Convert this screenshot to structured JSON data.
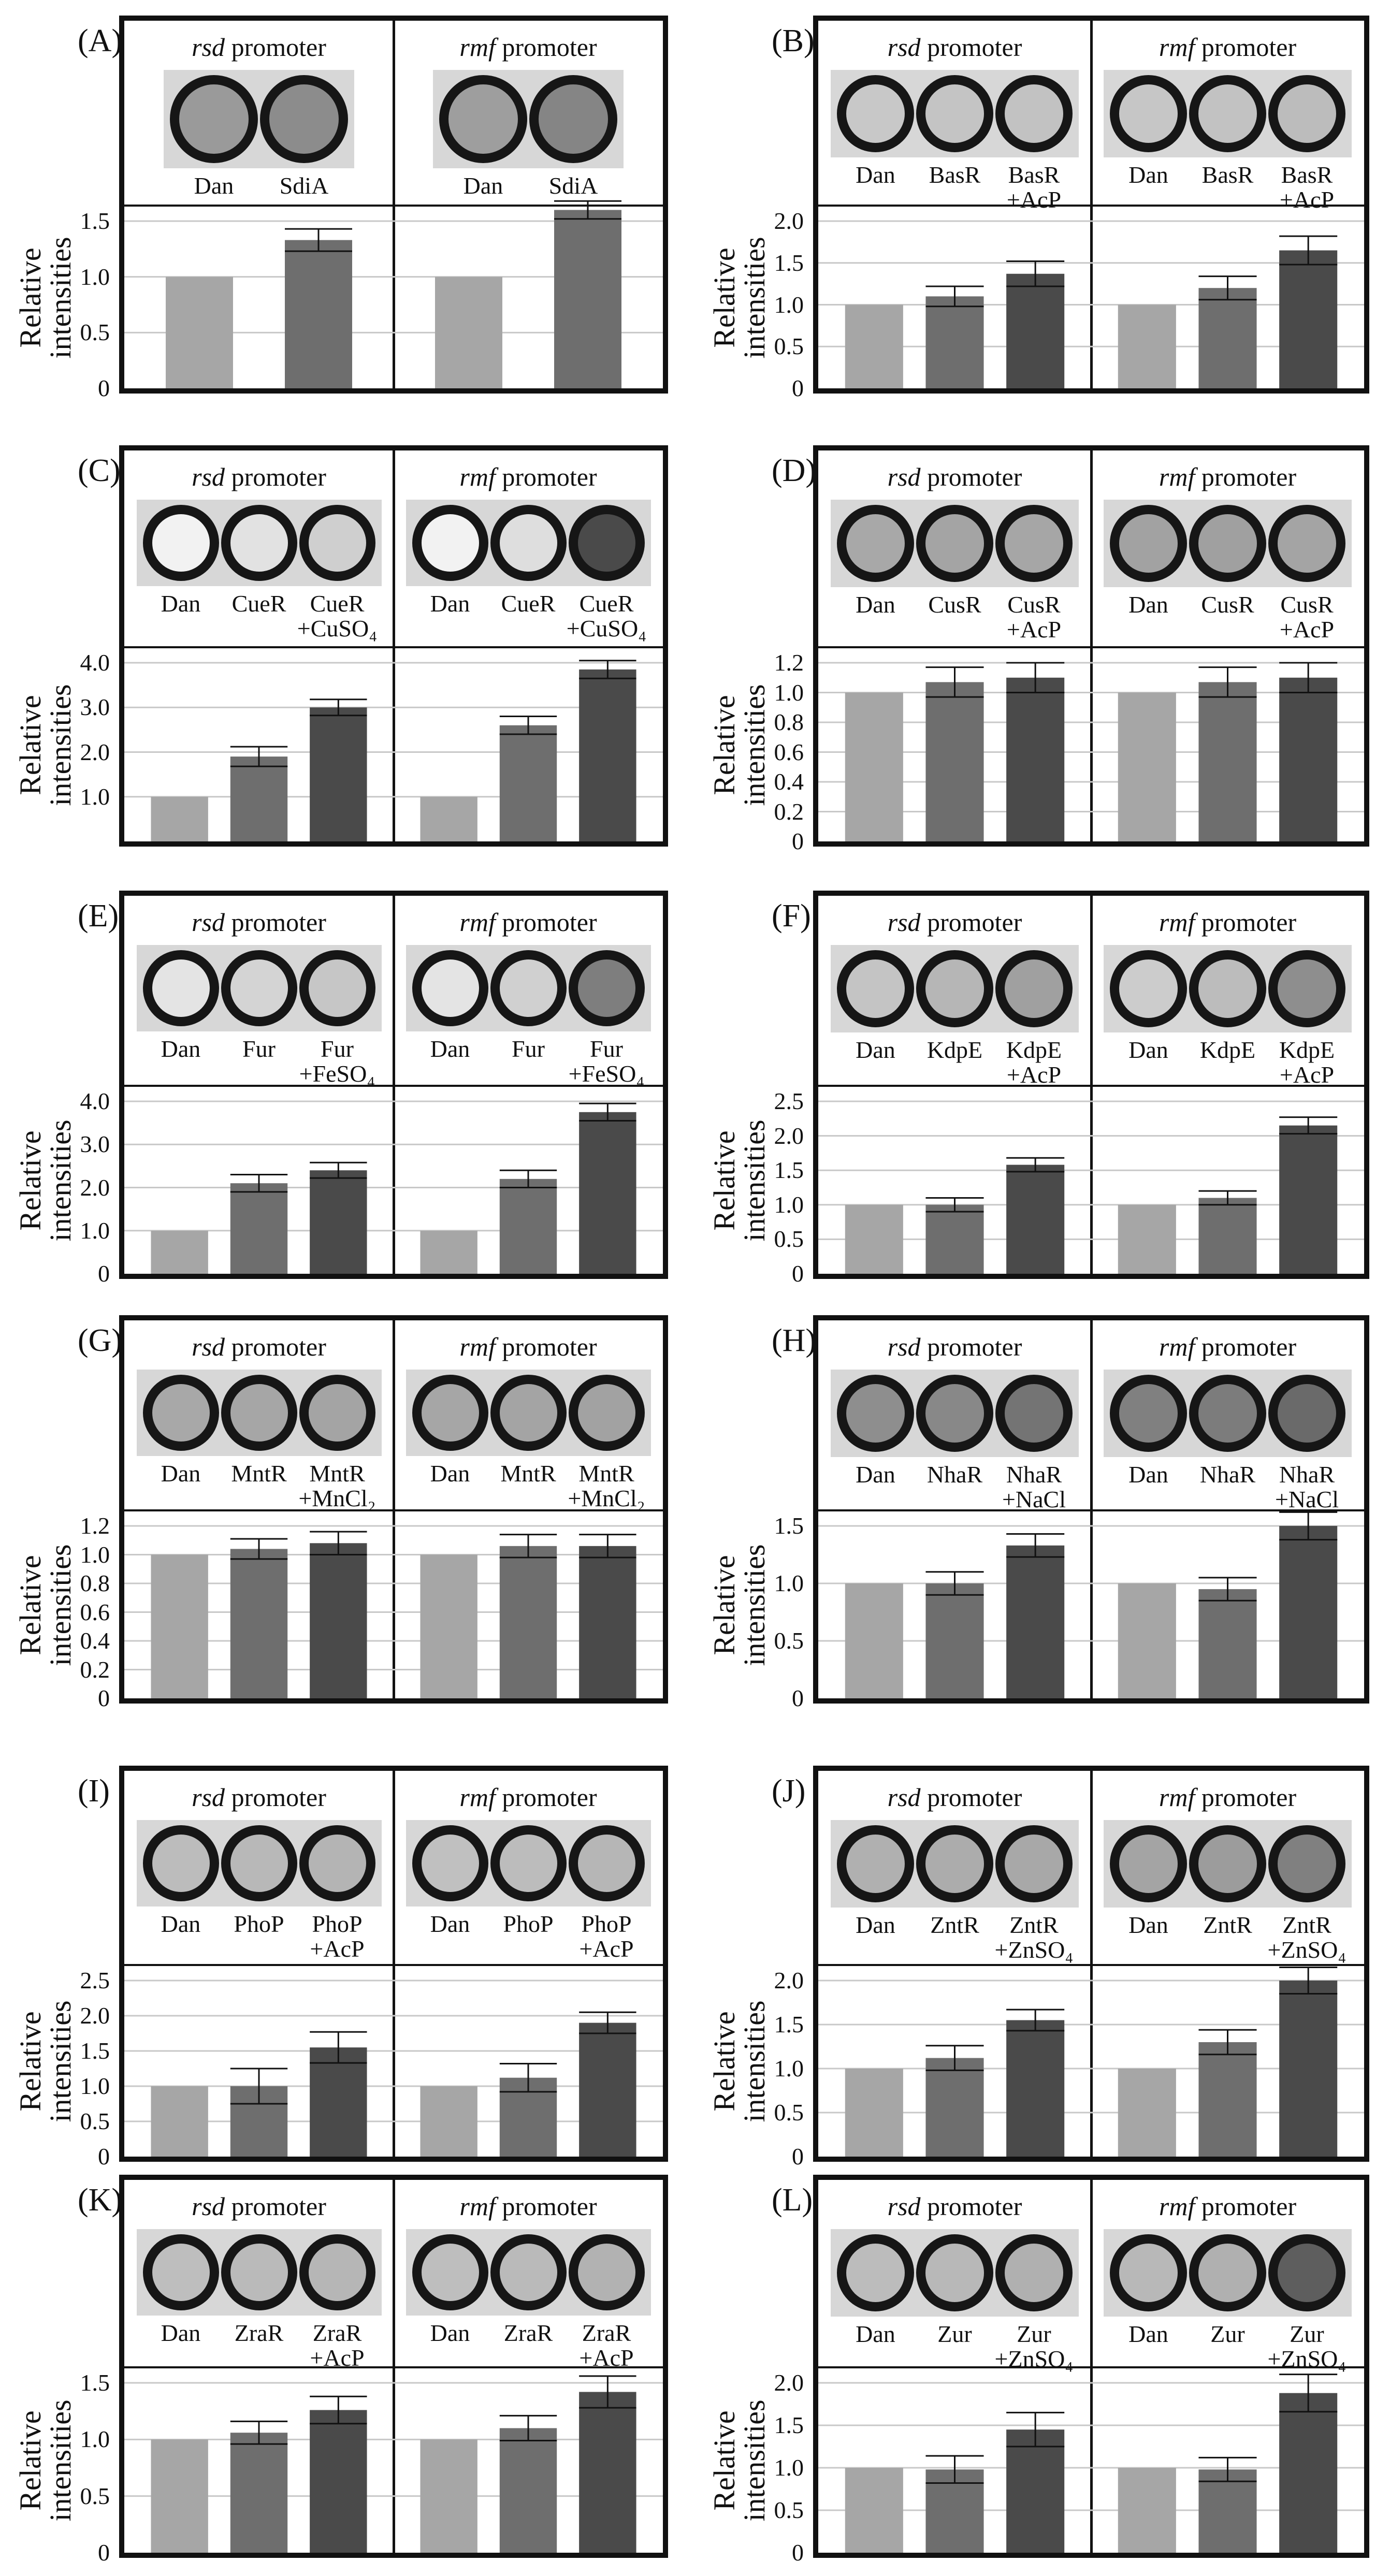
{
  "colors": {
    "dan": "#a6a6a6",
    "regulator": "#6e6e6e",
    "stimulus": "#4a4a4a",
    "grid": "#c8c8c8",
    "well_ring": "#161616"
  },
  "y_axis_label": "Relative intensities",
  "panels": [
    {
      "label": "(A)",
      "promoters": [
        {
          "name": "rsd",
          "suffix": " promoter"
        },
        {
          "name": "rmf",
          "suffix": " promoter"
        }
      ],
      "conditions": [
        "Dan",
        "SdiA"
      ],
      "wells": [
        [
          "#9a9a9a",
          "#8c8c8c"
        ],
        [
          "#9e9e9e",
          "#858585"
        ]
      ],
      "chart_data": {
        "type": "bar",
        "ylim": [
          0,
          1.5
        ],
        "yticks": [
          "0",
          "0.5",
          "1.0",
          "1.5"
        ],
        "tickvals": [
          0,
          0.5,
          1.0,
          1.5
        ],
        "ylabel": "Relative intensities",
        "groups": [
          {
            "promoter": "rsd promoter",
            "categories": [
              "Dan",
              "SdiA"
            ],
            "values": [
              1.0,
              1.33
            ],
            "errors": [
              0,
              0.1
            ]
          },
          {
            "promoter": "rmf promoter",
            "categories": [
              "Dan",
              "SdiA"
            ],
            "values": [
              1.0,
              1.6
            ],
            "errors": [
              0,
              0.08
            ]
          }
        ]
      }
    },
    {
      "label": "(B)",
      "promoters": [
        {
          "name": "rsd",
          "suffix": " promoter"
        },
        {
          "name": "rmf",
          "suffix": " promoter"
        }
      ],
      "conditions": [
        "Dan",
        "BasR",
        "BasR\n+AcP"
      ],
      "wells": [
        [
          "#c8c8c8",
          "#c4c4c4",
          "#c2c2c2"
        ],
        [
          "#c6c6c6",
          "#c2c2c2",
          "#bcbcbc"
        ]
      ],
      "chart_data": {
        "type": "bar",
        "ylim": [
          0,
          2.0
        ],
        "yticks": [
          "0",
          "0.5",
          "1.0",
          "1.5",
          "2.0"
        ],
        "tickvals": [
          0,
          0.5,
          1.0,
          1.5,
          2.0
        ],
        "ylabel": "Relative intensities",
        "groups": [
          {
            "promoter": "rsd promoter",
            "categories": [
              "Dan",
              "BasR",
              "BasR +AcP"
            ],
            "values": [
              1.0,
              1.1,
              1.37
            ],
            "errors": [
              0,
              0.12,
              0.15
            ]
          },
          {
            "promoter": "rmf promoter",
            "categories": [
              "Dan",
              "BasR",
              "BasR +AcP"
            ],
            "values": [
              1.0,
              1.2,
              1.65
            ],
            "errors": [
              0,
              0.14,
              0.17
            ]
          }
        ]
      }
    },
    {
      "label": "(C)",
      "promoters": [
        {
          "name": "rsd",
          "suffix": " promoter"
        },
        {
          "name": "rmf",
          "suffix": " promoter"
        }
      ],
      "conditions": [
        "Dan",
        "CueR",
        "CueR\n+CuSO₄"
      ],
      "wells": [
        [
          "#f2f2f2",
          "#e2e2e2",
          "#cfcfcf"
        ],
        [
          "#f2f2f2",
          "#dedede",
          "#4a4a4a"
        ]
      ],
      "chart_data": {
        "type": "bar",
        "ylim": [
          0,
          4.0
        ],
        "yticks": [
          "1.0",
          "2.0",
          "3.0",
          "4.0"
        ],
        "tickvals": [
          1.0,
          2.0,
          3.0,
          4.0
        ],
        "ylabel": "Relative intensities",
        "groups": [
          {
            "promoter": "rsd promoter",
            "categories": [
              "Dan",
              "CueR",
              "CueR +CuSO4"
            ],
            "values": [
              1.0,
              1.9,
              3.0
            ],
            "errors": [
              0,
              0.22,
              0.18
            ]
          },
          {
            "promoter": "rmf promoter",
            "categories": [
              "Dan",
              "CueR",
              "CueR +CuSO4"
            ],
            "values": [
              1.0,
              2.6,
              3.85
            ],
            "errors": [
              0,
              0.2,
              0.2
            ]
          }
        ]
      }
    },
    {
      "label": "(D)",
      "promoters": [
        {
          "name": "rsd",
          "suffix": " promoter"
        },
        {
          "name": "rmf",
          "suffix": " promoter"
        }
      ],
      "conditions": [
        "Dan",
        "CusR",
        "CusR\n+AcP"
      ],
      "wells": [
        [
          "#a8a8a8",
          "#a4a4a4",
          "#a6a6a6"
        ],
        [
          "#a2a2a2",
          "#a0a0a0",
          "#a4a4a4"
        ]
      ],
      "chart_data": {
        "type": "bar",
        "ylim": [
          0,
          1.2
        ],
        "yticks": [
          "0",
          "0.2",
          "0.4",
          "0.6",
          "0.8",
          "1.0",
          "1.2"
        ],
        "tickvals": [
          0,
          0.2,
          0.4,
          0.6,
          0.8,
          1.0,
          1.2
        ],
        "ylabel": "Relative intensities",
        "groups": [
          {
            "promoter": "rsd promoter",
            "categories": [
              "Dan",
              "CusR",
              "CusR +AcP"
            ],
            "values": [
              1.0,
              1.07,
              1.1
            ],
            "errors": [
              0,
              0.1,
              0.1
            ]
          },
          {
            "promoter": "rmf promoter",
            "categories": [
              "Dan",
              "CusR",
              "CusR +AcP"
            ],
            "values": [
              1.0,
              1.07,
              1.1
            ],
            "errors": [
              0,
              0.1,
              0.1
            ]
          }
        ]
      }
    },
    {
      "label": "(E)",
      "promoters": [
        {
          "name": "rsd",
          "suffix": " promoter"
        },
        {
          "name": "rmf",
          "suffix": " promoter"
        }
      ],
      "conditions": [
        "Dan",
        "Fur",
        "Fur\n+FeSO₄"
      ],
      "wells": [
        [
          "#e4e4e4",
          "#d4d4d4",
          "#c6c6c6"
        ],
        [
          "#e4e4e4",
          "#d0d0d0",
          "#7e7e7e"
        ]
      ],
      "chart_data": {
        "type": "bar",
        "ylim": [
          0,
          4.0
        ],
        "yticks": [
          "0",
          "1.0",
          "2.0",
          "3.0",
          "4.0"
        ],
        "tickvals": [
          0,
          1.0,
          2.0,
          3.0,
          4.0
        ],
        "ylabel": "Relative intensities",
        "groups": [
          {
            "promoter": "rsd promoter",
            "categories": [
              "Dan",
              "Fur",
              "Fur +FeSO4"
            ],
            "values": [
              1.0,
              2.1,
              2.4
            ],
            "errors": [
              0,
              0.2,
              0.18
            ]
          },
          {
            "promoter": "rmf promoter",
            "categories": [
              "Dan",
              "Fur",
              "Fur +FeSO4"
            ],
            "values": [
              1.0,
              2.2,
              3.75
            ],
            "errors": [
              0,
              0.2,
              0.2
            ]
          }
        ]
      }
    },
    {
      "label": "(F)",
      "promoters": [
        {
          "name": "rsd",
          "suffix": " promoter"
        },
        {
          "name": "rmf",
          "suffix": " promoter"
        }
      ],
      "conditions": [
        "Dan",
        "KdpE",
        "KdpE\n+AcP"
      ],
      "wells": [
        [
          "#c4c4c4",
          "#b6b6b6",
          "#a0a0a0"
        ],
        [
          "#cccccc",
          "#bcbcbc",
          "#8e8e8e"
        ]
      ],
      "chart_data": {
        "type": "bar",
        "ylim": [
          0,
          2.5
        ],
        "yticks": [
          "0",
          "0.5",
          "1.0",
          "1.5",
          "2.0",
          "2.5"
        ],
        "tickvals": [
          0,
          0.5,
          1.0,
          1.5,
          2.0,
          2.5
        ],
        "ylabel": "Relative intensities",
        "groups": [
          {
            "promoter": "rsd promoter",
            "categories": [
              "Dan",
              "KdpE",
              "KdpE +AcP"
            ],
            "values": [
              1.0,
              1.0,
              1.58
            ],
            "errors": [
              0,
              0.1,
              0.1
            ]
          },
          {
            "promoter": "rmf promoter",
            "categories": [
              "Dan",
              "KdpE",
              "KdpE +AcP"
            ],
            "values": [
              1.0,
              1.1,
              2.15
            ],
            "errors": [
              0,
              0.1,
              0.12
            ]
          }
        ]
      }
    },
    {
      "label": "(G)",
      "promoters": [
        {
          "name": "rsd",
          "suffix": " promoter"
        },
        {
          "name": "rmf",
          "suffix": " promoter"
        }
      ],
      "conditions": [
        "Dan",
        "MntR",
        "MntR\n+MnCl₂"
      ],
      "wells": [
        [
          "#a8a8a8",
          "#a6a6a6",
          "#a4a4a4"
        ],
        [
          "#a6a6a6",
          "#a4a4a4",
          "#a2a2a2"
        ]
      ],
      "chart_data": {
        "type": "bar",
        "ylim": [
          0,
          1.2
        ],
        "yticks": [
          "0",
          "0.2",
          "0.4",
          "0.6",
          "0.8",
          "1.0",
          "1.2"
        ],
        "tickvals": [
          0,
          0.2,
          0.4,
          0.6,
          0.8,
          1.0,
          1.2
        ],
        "ylabel": "Relative intensities",
        "groups": [
          {
            "promoter": "rsd promoter",
            "categories": [
              "Dan",
              "MntR",
              "MntR +MnCl2"
            ],
            "values": [
              1.0,
              1.04,
              1.08
            ],
            "errors": [
              0,
              0.07,
              0.08
            ]
          },
          {
            "promoter": "rmf promoter",
            "categories": [
              "Dan",
              "MntR",
              "MntR +MnCl2"
            ],
            "values": [
              1.0,
              1.06,
              1.06
            ],
            "errors": [
              0,
              0.08,
              0.08
            ]
          }
        ]
      }
    },
    {
      "label": "(H)",
      "promoters": [
        {
          "name": "rsd",
          "suffix": " promoter"
        },
        {
          "name": "rmf",
          "suffix": " promoter"
        }
      ],
      "conditions": [
        "Dan",
        "NhaR",
        "NhaR\n+NaCl"
      ],
      "wells": [
        [
          "#8e8e8e",
          "#888888",
          "#747474"
        ],
        [
          "#808080",
          "#7c7c7c",
          "#6a6a6a"
        ]
      ],
      "chart_data": {
        "type": "bar",
        "ylim": [
          0,
          1.5
        ],
        "yticks": [
          "0",
          "0.5",
          "1.0",
          "1.5"
        ],
        "tickvals": [
          0,
          0.5,
          1.0,
          1.5
        ],
        "ylabel": "Relative intensities",
        "groups": [
          {
            "promoter": "rsd promoter",
            "categories": [
              "Dan",
              "NhaR",
              "NhaR +NaCl"
            ],
            "values": [
              1.0,
              1.0,
              1.33
            ],
            "errors": [
              0,
              0.1,
              0.1
            ]
          },
          {
            "promoter": "rmf promoter",
            "categories": [
              "Dan",
              "NhaR",
              "NhaR +NaCl"
            ],
            "values": [
              1.0,
              0.95,
              1.5
            ],
            "errors": [
              0,
              0.1,
              0.12
            ]
          }
        ]
      }
    },
    {
      "label": "(I)",
      "promoters": [
        {
          "name": "rsd",
          "suffix": " promoter"
        },
        {
          "name": "rmf",
          "suffix": " promoter"
        }
      ],
      "conditions": [
        "Dan",
        "PhoP",
        "PhoP\n+AcP"
      ],
      "wells": [
        [
          "#bcbcbc",
          "#b8b8b8",
          "#b4b4b4"
        ],
        [
          "#c0c0c0",
          "#bcbcbc",
          "#b6b6b6"
        ]
      ],
      "chart_data": {
        "type": "bar",
        "ylim": [
          0,
          2.5
        ],
        "yticks": [
          "0",
          "0.5",
          "1.0",
          "1.5",
          "2.0",
          "2.5"
        ],
        "tickvals": [
          0,
          0.5,
          1.0,
          1.5,
          2.0,
          2.5
        ],
        "ylabel": "Relative intensities",
        "groups": [
          {
            "promoter": "rsd promoter",
            "categories": [
              "Dan",
              "PhoP",
              "PhoP +AcP"
            ],
            "values": [
              1.0,
              1.0,
              1.55
            ],
            "errors": [
              0,
              0.25,
              0.22
            ]
          },
          {
            "promoter": "rmf promoter",
            "categories": [
              "Dan",
              "PhoP",
              "PhoP +AcP"
            ],
            "values": [
              1.0,
              1.12,
              1.9
            ],
            "errors": [
              0,
              0.2,
              0.15
            ]
          }
        ]
      }
    },
    {
      "label": "(J)",
      "promoters": [
        {
          "name": "rsd",
          "suffix": " promoter"
        },
        {
          "name": "rmf",
          "suffix": " promoter"
        }
      ],
      "conditions": [
        "Dan",
        "ZntR",
        "ZntR\n+ZnSO₄"
      ],
      "wells": [
        [
          "#b0b0b0",
          "#acacac",
          "#a8a8a8"
        ],
        [
          "#a4a4a4",
          "#9c9c9c",
          "#808080"
        ]
      ],
      "chart_data": {
        "type": "bar",
        "ylim": [
          0,
          2.0
        ],
        "yticks": [
          "0",
          "0.5",
          "1.0",
          "1.5",
          "2.0"
        ],
        "tickvals": [
          0,
          0.5,
          1.0,
          1.5,
          2.0
        ],
        "ylabel": "Relative intensities",
        "groups": [
          {
            "promoter": "rsd promoter",
            "categories": [
              "Dan",
              "ZntR",
              "ZntR +ZnSO4"
            ],
            "values": [
              1.0,
              1.12,
              1.55
            ],
            "errors": [
              0,
              0.14,
              0.12
            ]
          },
          {
            "promoter": "rmf promoter",
            "categories": [
              "Dan",
              "ZntR",
              "ZntR +ZnSO4"
            ],
            "values": [
              1.0,
              1.3,
              2.0
            ],
            "errors": [
              0,
              0.14,
              0.15
            ]
          }
        ]
      }
    },
    {
      "label": "(K)",
      "promoters": [
        {
          "name": "rsd",
          "suffix": " promoter"
        },
        {
          "name": "rmf",
          "suffix": " promoter"
        }
      ],
      "conditions": [
        "Dan",
        "ZraR",
        "ZraR\n+AcP"
      ],
      "wells": [
        [
          "#bebebe",
          "#bababa",
          "#b6b6b6"
        ],
        [
          "#bebebe",
          "#bababa",
          "#b2b2b2"
        ]
      ],
      "chart_data": {
        "type": "bar",
        "ylim": [
          0,
          1.5
        ],
        "yticks": [
          "0",
          "0.5",
          "1.0",
          "1.5"
        ],
        "tickvals": [
          0,
          0.5,
          1.0,
          1.5
        ],
        "ylabel": "Relative intensities",
        "groups": [
          {
            "promoter": "rsd promoter",
            "categories": [
              "Dan",
              "ZraR",
              "ZraR +AcP"
            ],
            "values": [
              1.0,
              1.06,
              1.26
            ],
            "errors": [
              0,
              0.1,
              0.12
            ]
          },
          {
            "promoter": "rmf promoter",
            "categories": [
              "Dan",
              "ZraR",
              "ZraR +AcP"
            ],
            "values": [
              1.0,
              1.1,
              1.42
            ],
            "errors": [
              0,
              0.11,
              0.14
            ]
          }
        ]
      }
    },
    {
      "label": "(L)",
      "promoters": [
        {
          "name": "rsd",
          "suffix": " promoter"
        },
        {
          "name": "rmf",
          "suffix": " promoter"
        }
      ],
      "conditions": [
        "Dan",
        "Zur",
        "Zur\n+ZnSO₄"
      ],
      "wells": [
        [
          "#bcbcbc",
          "#b8b8b8",
          "#b0b0b0"
        ],
        [
          "#b8b8b8",
          "#b0b0b0",
          "#5e5e5e"
        ]
      ],
      "chart_data": {
        "type": "bar",
        "ylim": [
          0,
          2.0
        ],
        "yticks": [
          "0",
          "0.5",
          "1.0",
          "1.5",
          "2.0"
        ],
        "tickvals": [
          0,
          0.5,
          1.0,
          1.5,
          2.0
        ],
        "ylabel": "Relative intensities",
        "groups": [
          {
            "promoter": "rsd promoter",
            "categories": [
              "Dan",
              "Zur",
              "Zur +ZnSO4"
            ],
            "values": [
              1.0,
              0.98,
              1.45
            ],
            "errors": [
              0,
              0.16,
              0.2
            ]
          },
          {
            "promoter": "rmf promoter",
            "categories": [
              "Dan",
              "Zur",
              "Zur +ZnSO4"
            ],
            "values": [
              1.0,
              0.98,
              1.88
            ],
            "errors": [
              0,
              0.14,
              0.22
            ]
          }
        ]
      }
    }
  ]
}
